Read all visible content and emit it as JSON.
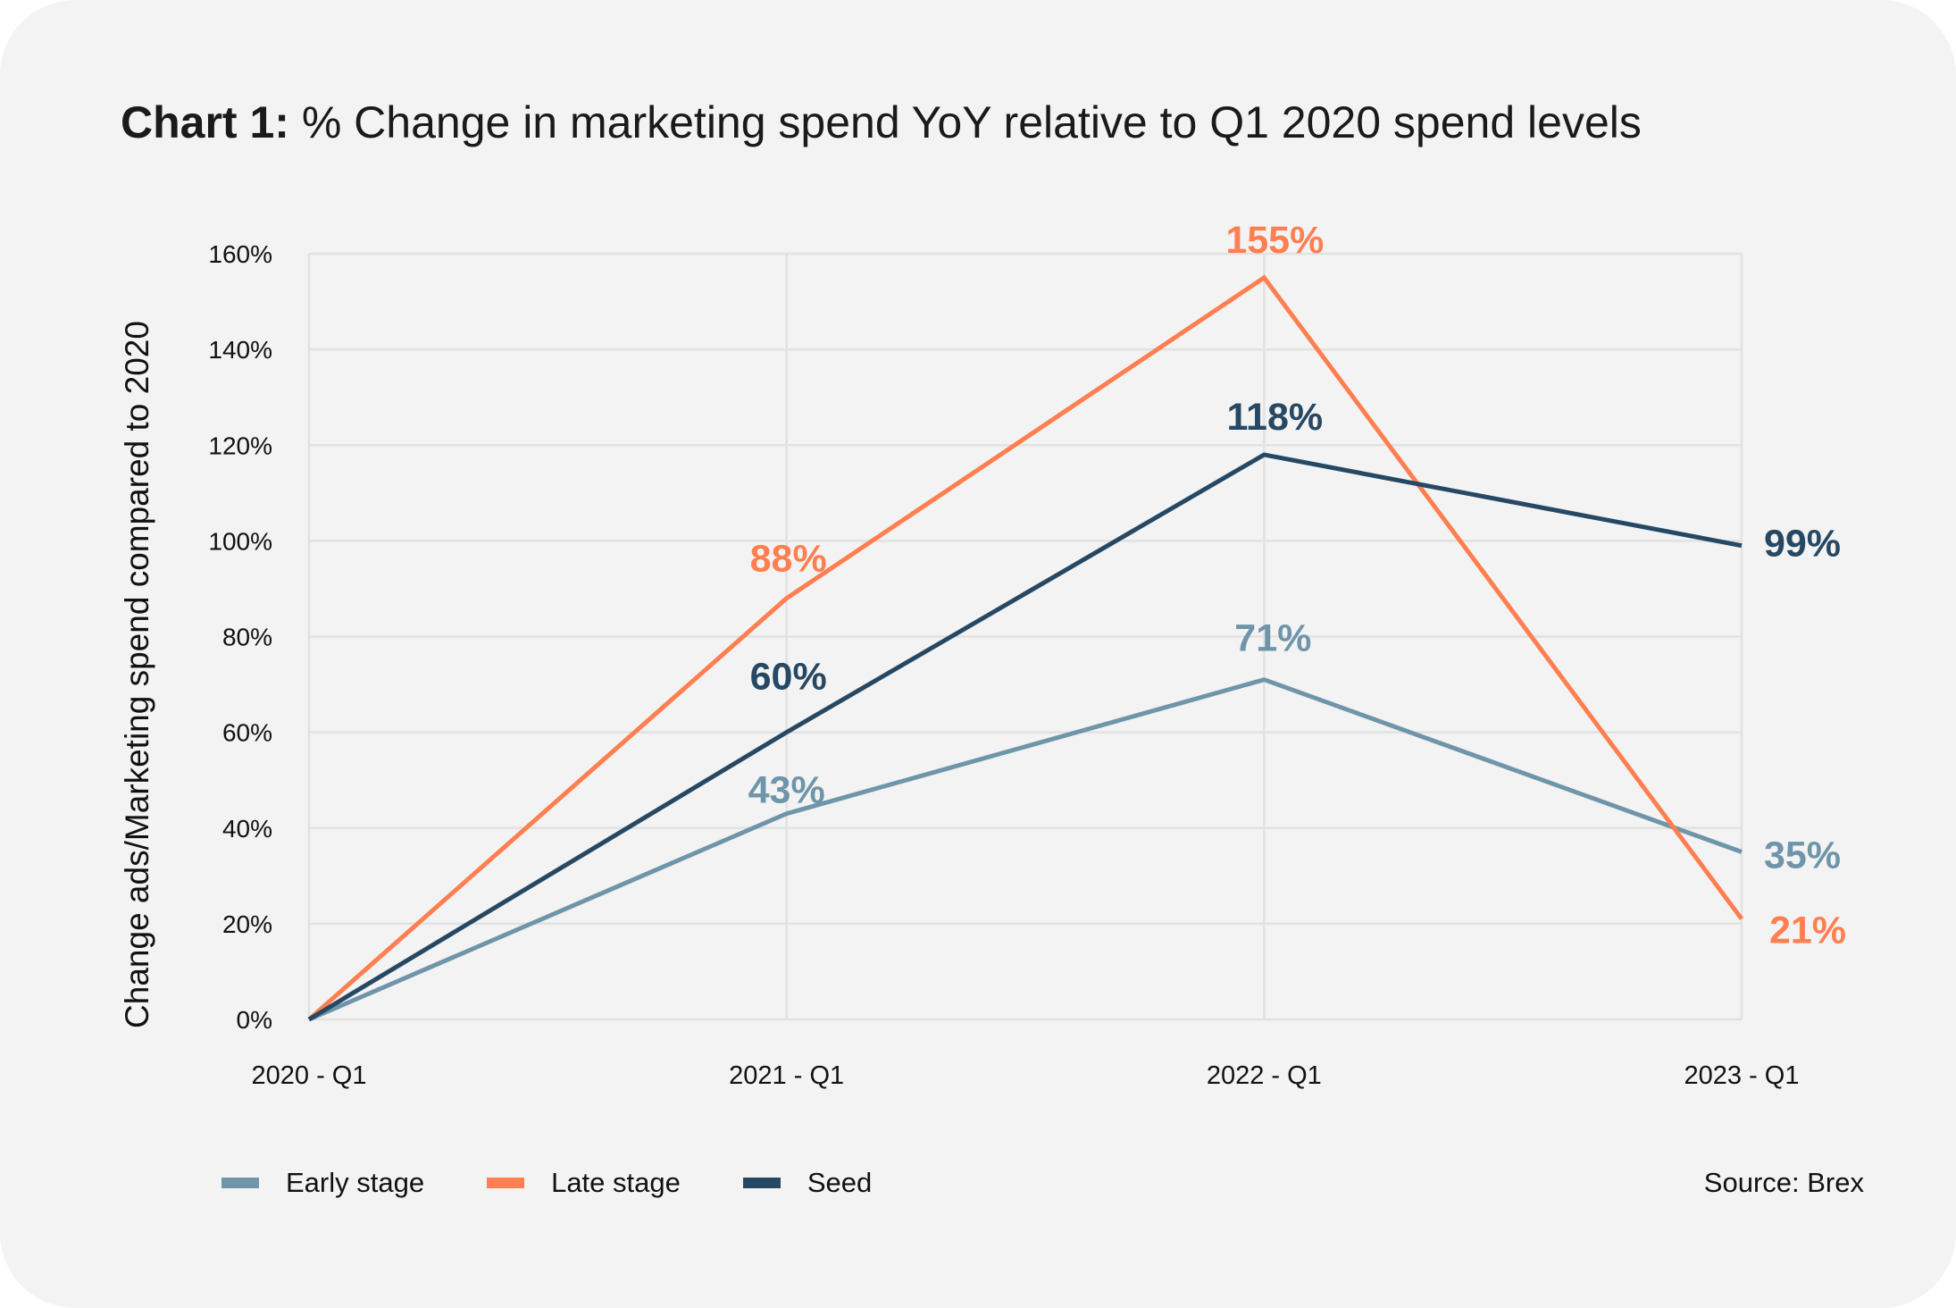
{
  "title": {
    "bold": "Chart 1:",
    "rest": " % Change in marketing spend YoY relative to Q1 2020 spend levels"
  },
  "source": "Source: Brex",
  "chart_data": {
    "type": "line",
    "title": "Chart 1: % Change in marketing spend YoY relative to Q1 2020 spend levels",
    "xlabel": "",
    "ylabel": "Change ads/Marketing spend compared to 2020",
    "categories": [
      "2020 - Q1",
      "2021 - Q1",
      "2022 - Q1",
      "2023 - Q1"
    ],
    "ylim": [
      0,
      160
    ],
    "yticks": [
      "0%",
      "20%",
      "40%",
      "60%",
      "80%",
      "100%",
      "120%",
      "140%",
      "160%"
    ],
    "grid": true,
    "legend": "bottom-left",
    "series": [
      {
        "name": "Early stage",
        "color": "#6f95aa",
        "values": [
          0,
          43,
          71,
          35
        ],
        "labels": [
          null,
          "43%",
          "71%",
          "35%"
        ]
      },
      {
        "name": "Late stage",
        "color": "#ff7f50",
        "values": [
          0,
          88,
          155,
          21
        ],
        "labels": [
          null,
          "88%",
          "155%",
          "21%"
        ]
      },
      {
        "name": "Seed",
        "color": "#274863",
        "values": [
          0,
          60,
          118,
          99
        ],
        "labels": [
          null,
          "60%",
          "118%",
          "99%"
        ]
      }
    ]
  }
}
